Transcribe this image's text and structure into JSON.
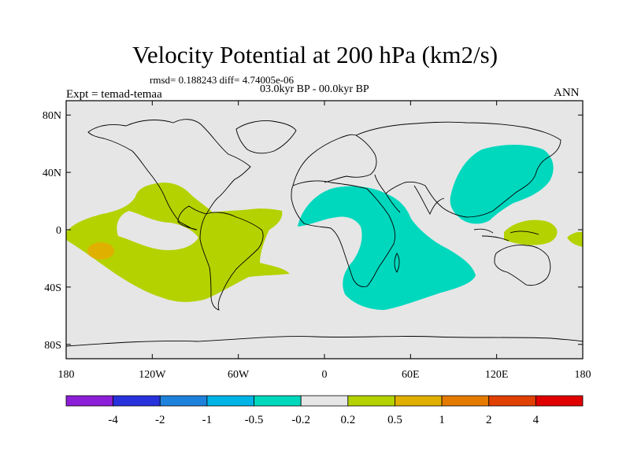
{
  "header": {
    "title": "Velocity Potential at 200 hPa (km2/s)",
    "stats": "rmsd= 0.188243 diff= 4.74005e-06",
    "period": "03.0kyr BP - 00.0kyr BP",
    "experiment": "Expt = temad-temaa",
    "season": "ANN"
  },
  "map": {
    "background_color": "#e6e6e6",
    "lat_labels": [
      "80N",
      "40N",
      "0",
      "40S",
      "80S"
    ],
    "lon_labels": [
      "180",
      "120W",
      "60W",
      "0",
      "60E",
      "120E",
      "180"
    ],
    "regions": [
      {
        "name": "eastern-pacific-america-positive",
        "class": "0.2 to 0.5",
        "color": "#b4d200"
      },
      {
        "name": "central-pacific-positive-max",
        "class": "0.5 to 1",
        "color": "#e0b000"
      },
      {
        "name": "africa-indian-ocean-negative",
        "class": "-0.5 to -0.2",
        "color": "#00d8be"
      },
      {
        "name": "east-asia-negative",
        "class": "-0.5 to -0.2",
        "color": "#00d8be"
      },
      {
        "name": "new-guinea-positive",
        "class": "0.2 to 0.5",
        "color": "#b4d200"
      }
    ]
  },
  "colorbar": {
    "labels": [
      "-4",
      "-2",
      "-1",
      "-0.5",
      "-0.2",
      "0.2",
      "0.5",
      "1",
      "2",
      "4"
    ],
    "colors": [
      "#8c1ed8",
      "#2832dc",
      "#1e82dc",
      "#00b4e6",
      "#00d8be",
      "#e6e6e6",
      "#b4d200",
      "#e0b000",
      "#e47a00",
      "#e04000",
      "#e00000"
    ]
  }
}
